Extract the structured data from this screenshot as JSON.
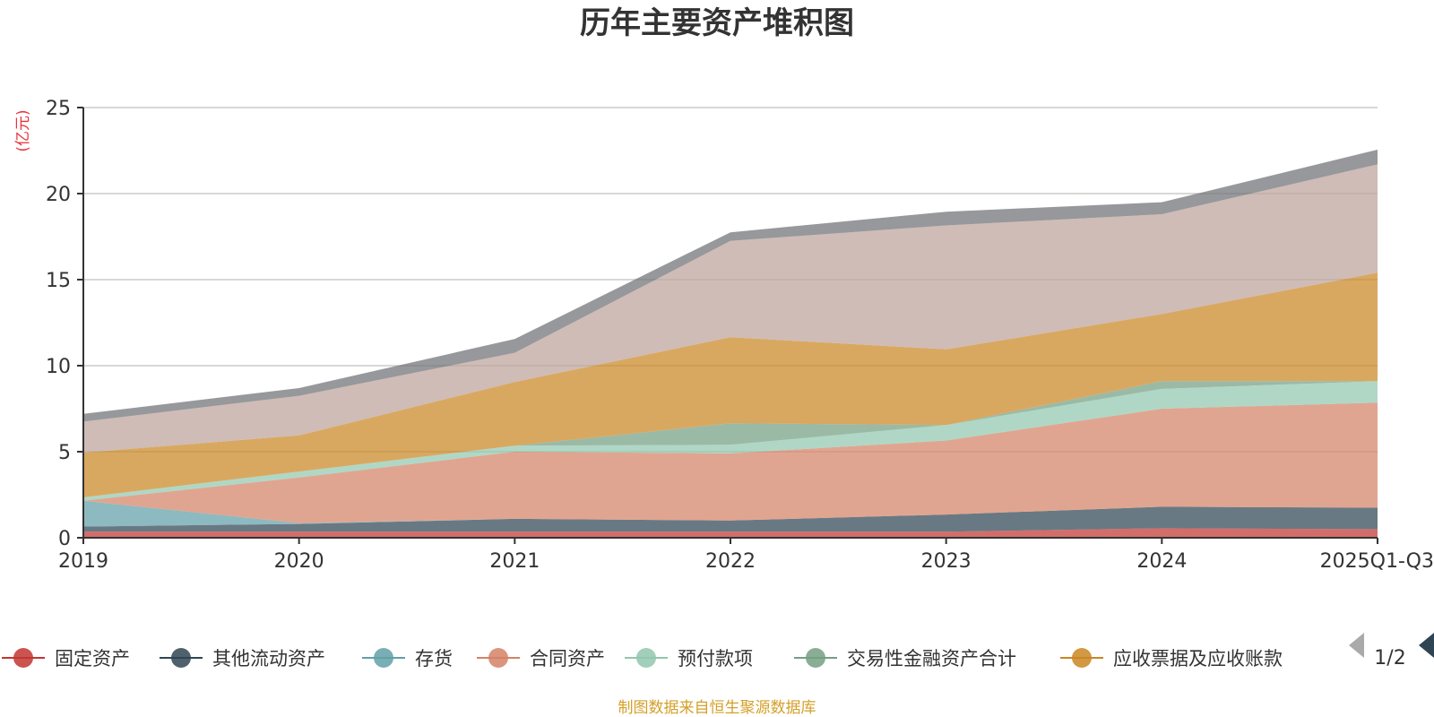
{
  "chart_data": {
    "type": "area",
    "stacked": true,
    "title": "历年主要资产堆积图",
    "ylabel": "(亿元)",
    "xlabel": "",
    "categories": [
      "2019",
      "2020",
      "2021",
      "2022",
      "2023",
      "2024",
      "2025Q1-Q3"
    ],
    "ylim": [
      0,
      25
    ],
    "yticks": [
      "0",
      "5",
      "10",
      "15",
      "20",
      "25"
    ],
    "grid": true,
    "legend_position": "bottom",
    "legend_page": "1/2",
    "series": [
      {
        "name": "固定资产",
        "color": "#c23531",
        "values": [
          0.35,
          0.35,
          0.35,
          0.35,
          0.35,
          0.55,
          0.5
        ],
        "in_legend": true
      },
      {
        "name": "其他流动资产",
        "color": "#2f4554",
        "values": [
          0.3,
          0.45,
          0.75,
          0.65,
          1.0,
          1.25,
          1.25
        ],
        "in_legend": true
      },
      {
        "name": "存货",
        "color": "#61a0a8",
        "values": [
          1.5,
          0.05,
          0.0,
          0.0,
          0.0,
          0.0,
          0.0
        ],
        "in_legend": true
      },
      {
        "name": "合同资产",
        "color": "#d48265",
        "values": [
          0.0,
          2.65,
          3.9,
          3.9,
          4.3,
          5.7,
          6.1
        ],
        "in_legend": true
      },
      {
        "name": "预付款项",
        "color": "#91c7ae",
        "values": [
          0.2,
          0.35,
          0.35,
          0.5,
          0.9,
          1.15,
          1.25
        ],
        "in_legend": true
      },
      {
        "name": "交易性金融资产合计",
        "color": "#749f83",
        "values": [
          0.0,
          0.0,
          0.0,
          1.25,
          0.0,
          0.45,
          0.0
        ],
        "in_legend": true
      },
      {
        "name": "应收票据及应收账款",
        "color": "#ca8622",
        "values": [
          2.6,
          2.1,
          3.7,
          5.0,
          4.4,
          3.9,
          6.3
        ],
        "in_legend": true
      },
      {
        "name": "",
        "color": "#bda29a",
        "values": [
          1.8,
          2.3,
          1.7,
          5.6,
          7.2,
          5.8,
          6.3
        ],
        "in_legend": false
      },
      {
        "name": "",
        "color": "#6e7074",
        "values": [
          0.45,
          0.45,
          0.8,
          0.5,
          0.8,
          0.7,
          0.85
        ],
        "in_legend": false
      }
    ]
  },
  "footer": {
    "source": "制图数据来自恒生聚源数据库",
    "source_color": "#d4a02a"
  },
  "colors": {
    "unit_color": "#e8333a",
    "axis_color": "#333333",
    "grid_color": "#cccccc",
    "pager_active": "#2f4554",
    "pager_inactive": "#aaaaaa"
  }
}
